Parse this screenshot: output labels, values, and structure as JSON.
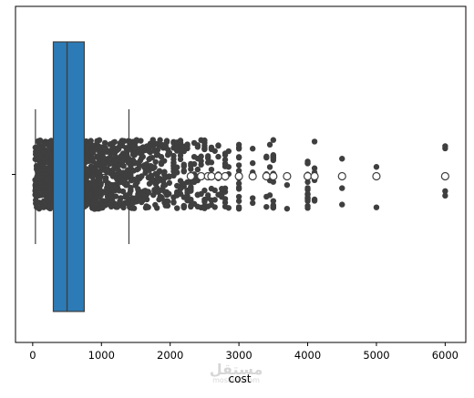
{
  "chart_data": {
    "type": "boxplot-stripplot",
    "title": "",
    "xlabel": "cost",
    "ylabel": "",
    "xlim": [
      -250,
      6300
    ],
    "xticks": [
      0,
      1000,
      2000,
      3000,
      4000,
      5000,
      6000
    ],
    "xtick_labels": [
      "0",
      "1000",
      "2000",
      "3000",
      "4000",
      "5000",
      "6000"
    ],
    "grid": false,
    "legend": "none",
    "box": {
      "whisker_low": 40,
      "q1": 300,
      "median": 500,
      "q3": 750,
      "whisker_high": 1400,
      "fliers": [
        2300,
        2450,
        2550,
        2600,
        2700,
        2800,
        3000,
        3200,
        3400,
        3500,
        3700,
        4000,
        4100,
        4500,
        5000,
        6000
      ],
      "color": "#2c7bb6"
    },
    "strip": {
      "color": "#3f3f3f",
      "dense_range": [
        40,
        2000
      ],
      "sparse_points": [
        {
          "x": 2050,
          "n": 16
        },
        {
          "x": 2100,
          "n": 14
        },
        {
          "x": 2150,
          "n": 12
        },
        {
          "x": 2200,
          "n": 14
        },
        {
          "x": 2250,
          "n": 8
        },
        {
          "x": 2300,
          "n": 12
        },
        {
          "x": 2350,
          "n": 8
        },
        {
          "x": 2400,
          "n": 10
        },
        {
          "x": 2450,
          "n": 6
        },
        {
          "x": 2500,
          "n": 12
        },
        {
          "x": 2550,
          "n": 6
        },
        {
          "x": 2600,
          "n": 8
        },
        {
          "x": 2650,
          "n": 4
        },
        {
          "x": 2700,
          "n": 8
        },
        {
          "x": 2750,
          "n": 4
        },
        {
          "x": 2800,
          "n": 12
        },
        {
          "x": 2850,
          "n": 4
        },
        {
          "x": 3000,
          "n": 18
        },
        {
          "x": 3200,
          "n": 6
        },
        {
          "x": 3400,
          "n": 6
        },
        {
          "x": 3450,
          "n": 4
        },
        {
          "x": 3500,
          "n": 14
        },
        {
          "x": 3700,
          "n": 3
        },
        {
          "x": 4000,
          "n": 16
        },
        {
          "x": 4100,
          "n": 6
        },
        {
          "x": 4500,
          "n": 3
        },
        {
          "x": 5000,
          "n": 2
        },
        {
          "x": 6000,
          "n": 4
        }
      ]
    }
  },
  "watermark": {
    "main": "مستقل",
    "sub": "mostaql.com"
  }
}
